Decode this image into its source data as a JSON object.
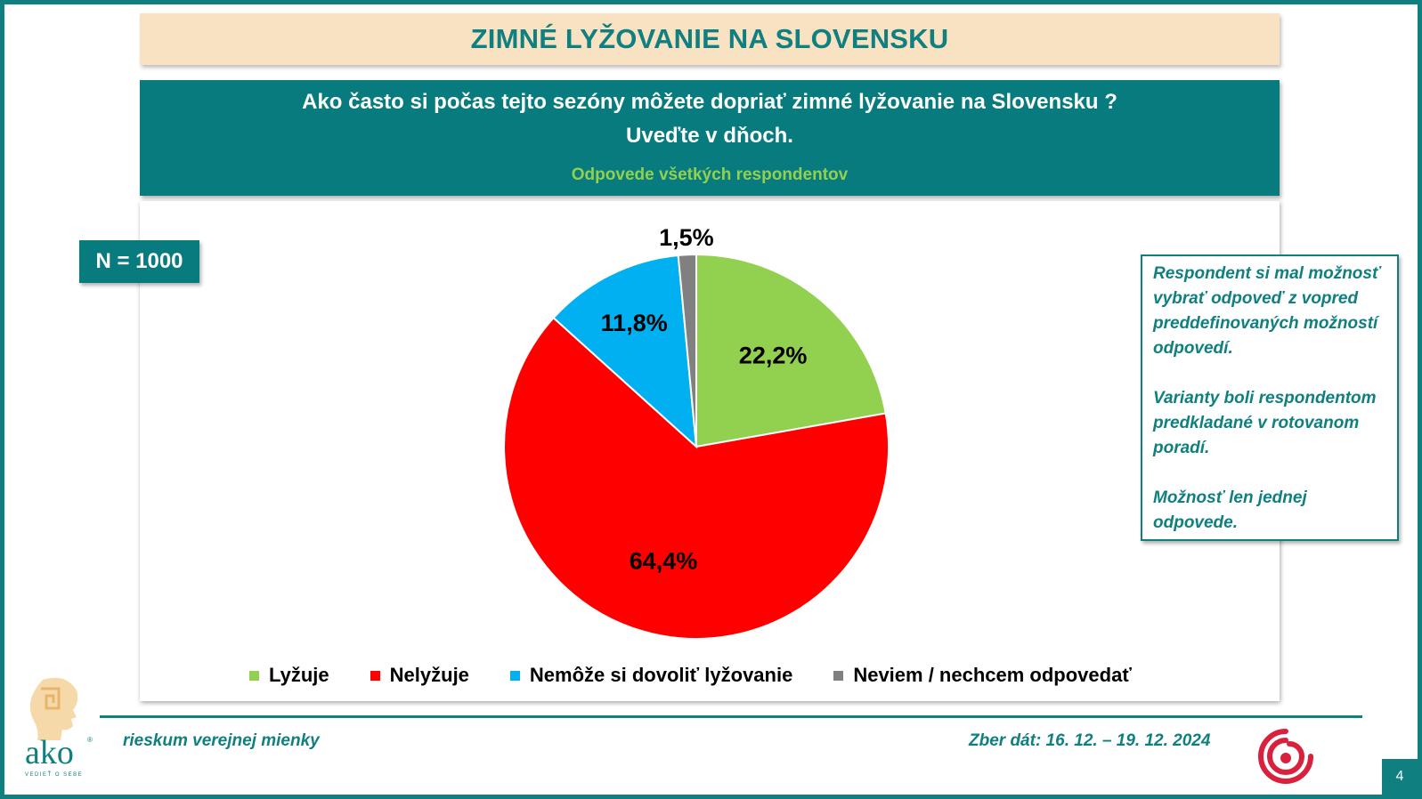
{
  "header": {
    "title": "ZIMNÉ LYŽOVANIE NA SLOVENSKU",
    "question": "Ako často si počas tejto sezóny  môžete dopriať zimné lyžovanie na Slovensku ? Uveďte v dňoch.",
    "subtitle": "Odpovede všetkých respondentov"
  },
  "sample": {
    "label": "N = 1000"
  },
  "note": {
    "p1": "Respondent si mal možnosť vybrať  odpoveď z vopred preddefinovaných možností odpovedí.",
    "p2": "Varianty boli respondentom predkladané v rotovanom poradí.",
    "p3": "Možnosť len jednej odpovede."
  },
  "chart_data": {
    "type": "pie",
    "categories": [
      "Lyžuje",
      "Nelyžuje",
      "Nemôže si dovoliť lyžovanie",
      "Neviem / nechcem odpovedať"
    ],
    "values": [
      22.2,
      64.4,
      11.8,
      1.5
    ],
    "labels": [
      "22,2%",
      "64,4%",
      "11,8%",
      "1,5%"
    ],
    "colors": [
      "#92d050",
      "#ff0000",
      "#00b0f0",
      "#808080"
    ],
    "legend_position": "bottom",
    "start": "12 o'clock",
    "direction": "clockwise"
  },
  "footer": {
    "left": "rieskum verejnej mienky",
    "right": "Zber dát: 16. 12. – 19. 12. 2024",
    "page": "4"
  },
  "logo": {
    "text": "ako",
    "tagline": "VEDIEŤ O SEBE",
    "trademark": "®"
  },
  "theme": {
    "accent": "#0f7f80",
    "title_bg": "#f8e2c2"
  }
}
